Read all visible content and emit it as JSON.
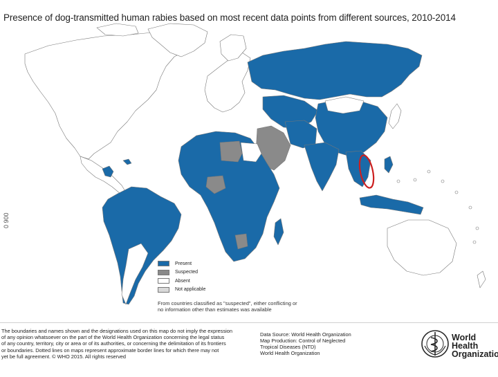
{
  "map": {
    "title": "Presence of dog-transmitted human rabies based on most recent data points from different sources, 2010-2014",
    "scale_label": "0 900",
    "legend": [
      {
        "label": "Present",
        "color": "#1a6aa8"
      },
      {
        "label": "Suspected",
        "color": "#8a8a8a"
      },
      {
        "label": "Absent",
        "color": "#ffffff"
      },
      {
        "label": "Not applicable",
        "color": "#d9d9d9"
      }
    ],
    "legend_note_line1": "From countries classified as \"suspected\", either conflicting or",
    "legend_note_line2": "no information other than estimates was available",
    "highlight_color": "#cc1f1f",
    "land_outline_color": "#777777",
    "absent_fill": "#ffffff"
  },
  "footer": {
    "disclaimer_lines": [
      "The boundaries and names shown and the designations used on this map do not imply the expression",
      "of any opinion whatsoever on the part of the World Health Organization concerning the legal status",
      "of any country, territory, city or area or of its authorities, or concerning the delimitation of its frontiers",
      "or boundaries. Dotted lines on maps represent approximate border lines for which there may not",
      "yet be full agreement. © WHO 2015. All rights reserved"
    ],
    "credits_lines": [
      "Data Source: World Health Organization",
      "Map Production: Control of Neglected",
      "Tropical Diseases (NTD)",
      "World Health Organization"
    ],
    "who_name_line1": "World Health",
    "who_name_line2": "Organization"
  }
}
